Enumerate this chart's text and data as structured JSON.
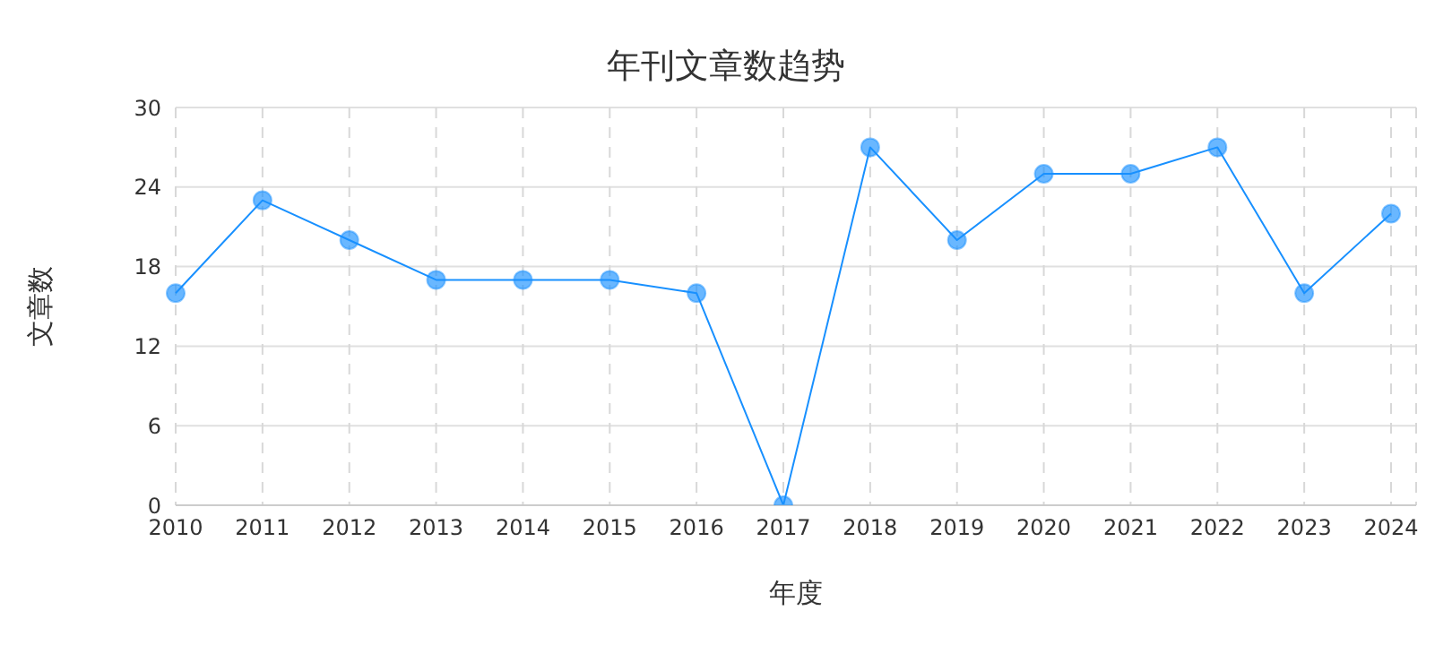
{
  "chart_data": {
    "type": "line",
    "title": "年刊文章数趋势",
    "xlabel": "年度",
    "ylabel": "文章数",
    "categories": [
      "2010",
      "2011",
      "2012",
      "2013",
      "2014",
      "2015",
      "2016",
      "2017",
      "2018",
      "2019",
      "2020",
      "2021",
      "2022",
      "2023",
      "2024"
    ],
    "series": [
      {
        "color": "#1890ff",
        "values": [
          16,
          23,
          20,
          17,
          17,
          17,
          16,
          0,
          27,
          20,
          25,
          25,
          27,
          16,
          22
        ]
      }
    ],
    "ylim": [
      0,
      30
    ],
    "yticks": [
      0,
      6,
      12,
      18,
      24,
      30
    ],
    "grid": true,
    "marker": "circle",
    "line_style": "solid"
  }
}
